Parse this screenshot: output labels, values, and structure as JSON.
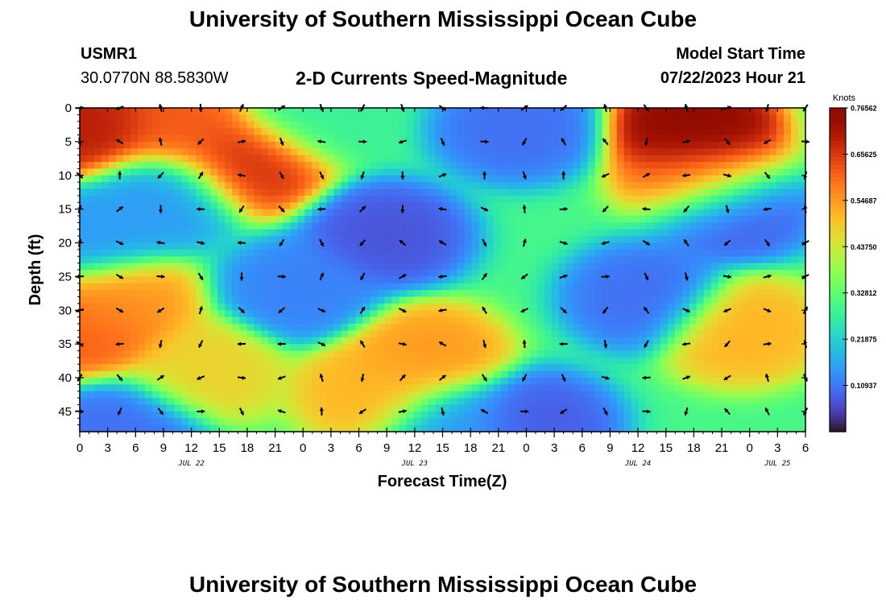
{
  "page": {
    "title": "University of Southern Mississippi Ocean Cube",
    "station": "USMR1",
    "coords": "30.0770N  88.5830W",
    "subtitle": "2-D Currents Speed-Magnitude",
    "model_label": "Model Start Time",
    "model_time": "07/22/2023 Hour 21",
    "bottom_title": "University of Southern Mississippi Ocean Cube"
  },
  "chart_data": {
    "type": "heatmap",
    "title": "2-D Currents Speed-Magnitude",
    "xlabel": "Forecast Time(Z)",
    "ylabel": "Depth (ft)",
    "x_tick_labels": [
      "0",
      "3",
      "6",
      "9",
      "12",
      "15",
      "18",
      "21",
      "0",
      "3",
      "6",
      "9",
      "12",
      "15",
      "18",
      "21",
      "0",
      "3",
      "6",
      "9",
      "12",
      "15",
      "18",
      "21",
      "0",
      "3",
      "6"
    ],
    "date_labels": [
      {
        "label": "JUL 22",
        "hour": 12
      },
      {
        "label": "JUL 23",
        "hour": 36
      },
      {
        "label": "JUL 24",
        "hour": 60
      },
      {
        "label": "JUL 25",
        "hour": 75
      }
    ],
    "x_range_hours": [
      0,
      78
    ],
    "y_ticks": [
      "0",
      "5",
      "10",
      "15",
      "20",
      "25",
      "30",
      "35",
      "40",
      "45"
    ],
    "y_range_ft": [
      0,
      48
    ],
    "colorbar": {
      "unit": "Knots",
      "tick_labels": [
        "0.76562",
        "0.65625",
        "0.54687",
        "0.43750",
        "0.32812",
        "0.21875",
        "0.10937"
      ],
      "range": [
        0,
        0.765625
      ],
      "colormap": "turbo"
    },
    "speed_hotspots": [
      {
        "hour": 1,
        "depth_ft": 3,
        "knots": 0.7
      },
      {
        "hour": 18,
        "depth_ft": 8,
        "knots": 0.67
      },
      {
        "hour": 11,
        "depth_ft": 3,
        "knots": 0.62
      },
      {
        "hour": 66,
        "depth_ft": 3,
        "knots": 0.76
      },
      {
        "hour": 67,
        "depth_ft": 10,
        "knots": 0.62
      },
      {
        "hour": 1,
        "depth_ft": 33,
        "knots": 0.62
      },
      {
        "hour": 4,
        "depth_ft": 29,
        "knots": 0.55
      },
      {
        "hour": 37,
        "depth_ft": 37,
        "knots": 0.55
      },
      {
        "hour": 32,
        "depth_ft": 42,
        "knots": 0.52
      },
      {
        "hour": 71,
        "depth_ft": 33,
        "knots": 0.52
      },
      {
        "hour": 13,
        "depth_ft": 39,
        "knots": 0.48
      },
      {
        "hour": 25,
        "depth_ft": 1,
        "knots": 0.28
      },
      {
        "hour": 33,
        "depth_ft": 19,
        "knots": 0.07
      },
      {
        "hour": 47,
        "depth_ft": 3,
        "knots": 0.1
      },
      {
        "hour": 70,
        "depth_ft": 15,
        "knots": 0.08
      },
      {
        "hour": 61,
        "depth_ft": 28,
        "knots": 0.1
      },
      {
        "hour": 24,
        "depth_ft": 27,
        "knots": 0.12
      },
      {
        "hour": 5,
        "depth_ft": 47,
        "knots": 0.1
      },
      {
        "hour": 49,
        "depth_ft": 47,
        "knots": 0.08
      },
      {
        "hour": 9,
        "depth_ft": 13,
        "knots": 0.15
      },
      {
        "hour": 1,
        "depth_ft": 19,
        "knots": 0.15
      },
      {
        "hour": 40,
        "depth_ft": 47,
        "knots": 0.15
      }
    ],
    "background_speed_knots": 0.3,
    "arrow_grid": {
      "hours": [
        0,
        4.3,
        8.7,
        13,
        17.4,
        21.7,
        26,
        30.4,
        34.7,
        39,
        43.5,
        47.8,
        52,
        56.5,
        60.9,
        65.2,
        69.6,
        73.9,
        78
      ],
      "depths_ft": [
        0,
        5,
        10,
        15,
        20,
        25,
        30,
        35,
        40,
        45
      ],
      "style": "direction vectors, unit length"
    }
  }
}
